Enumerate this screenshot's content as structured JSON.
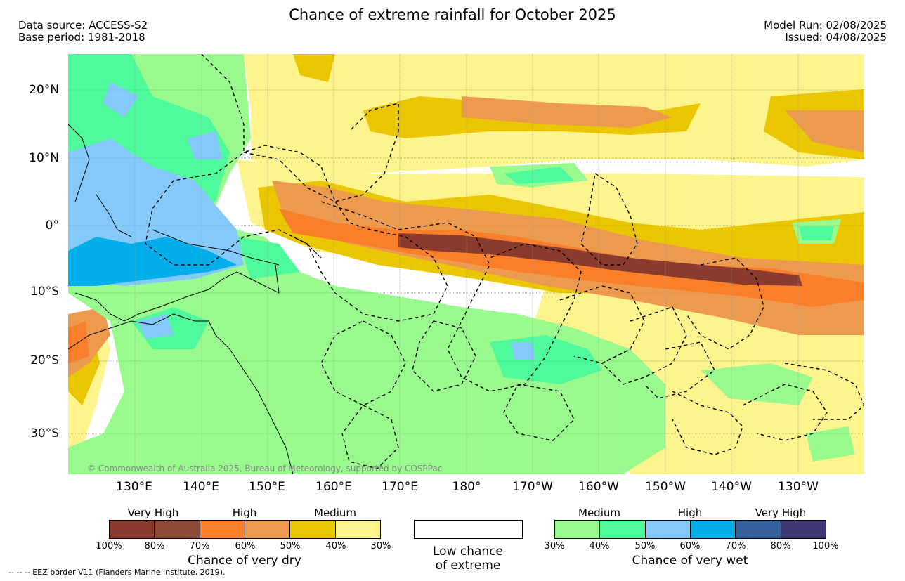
{
  "header": {
    "title": "Chance of extreme rainfall for October 2025",
    "data_source": "Data source: ACCESS-S2",
    "base_period": "Base period: 1981-2018",
    "model_run": "Model Run: 02/08/2025",
    "issued": "Issued: 04/08/2025"
  },
  "map": {
    "lat_labels": [
      "20°N",
      "10°N",
      "0°",
      "10°S",
      "20°S",
      "30°S"
    ],
    "lon_labels": [
      "130°E",
      "140°E",
      "150°E",
      "160°E",
      "170°E",
      "180°",
      "170°W",
      "160°W",
      "150°W",
      "140°W",
      "130°W"
    ],
    "copyright": "© Commonwealth of Australia 2025, Bureau of Meteorology, supported by COSPPac",
    "colors": {
      "dry_very_high_100": "#8a3b2e",
      "dry_very_high_80": "#8c4a36",
      "dry_high_70": "#f97f2a",
      "dry_high_60": "#ec9a4d",
      "dry_medium_50": "#eac600",
      "dry_medium_40": "#fdf48e",
      "wet_medium_30": "#99fa8e",
      "wet_medium_40": "#4efa9c",
      "wet_high_50": "#85c9fb",
      "wet_high_60": "#02aeea",
      "wet_very_high_70": "#33609a",
      "wet_very_high_80": "#3f3a74",
      "eez_border": "#000000"
    }
  },
  "legend": {
    "dry": {
      "headings": [
        "Very High",
        "High",
        "Medium"
      ],
      "tick_labels": [
        "100%",
        "80%",
        "70%",
        "60%",
        "50%",
        "40%",
        "30%"
      ],
      "caption": "Chance of very dry"
    },
    "low": {
      "line1": "Low chance",
      "line2": "of extreme"
    },
    "wet": {
      "headings": [
        "Medium",
        "High",
        "Very High"
      ],
      "tick_labels": [
        "30%",
        "40%",
        "50%",
        "60%",
        "70%",
        "80%",
        "100%"
      ],
      "caption": "Chance of very wet"
    },
    "footnote": "--  --  -- EEZ border V11 (Flanders Marine Institute, 2019)."
  }
}
